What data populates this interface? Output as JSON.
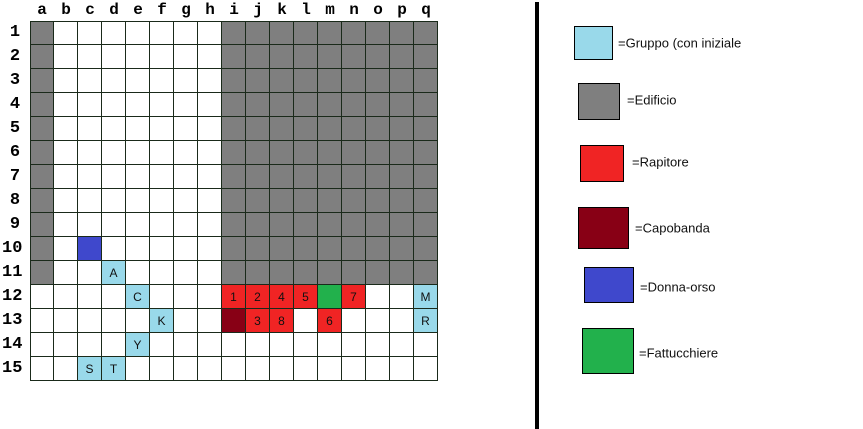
{
  "columns": [
    "a",
    "b",
    "c",
    "d",
    "e",
    "f",
    "g",
    "h",
    "i",
    "j",
    "k",
    "l",
    "m",
    "n",
    "o",
    "p",
    "q"
  ],
  "rows": [
    "1",
    "2",
    "3",
    "4",
    "5",
    "6",
    "7",
    "8",
    "9",
    "10",
    "11",
    "12",
    "13",
    "14",
    "15"
  ],
  "colors": {
    "gruppo": "#99d9ea",
    "edificio": "#7f7f7f",
    "rapitore": "#f02424",
    "capobanda": "#880015",
    "donna_orso": "#3f48cc",
    "fattucchiere": "#22b14c"
  },
  "building_areas": [
    {
      "cols": "a",
      "rows": "1-11"
    },
    {
      "cols": "i-q",
      "rows": "1-11"
    }
  ],
  "cells": [
    {
      "cell": "c10",
      "type": "donna_orso",
      "label": ""
    },
    {
      "cell": "d11",
      "type": "gruppo",
      "label": "A"
    },
    {
      "cell": "e12",
      "type": "gruppo",
      "label": "C"
    },
    {
      "cell": "i12",
      "type": "rapitore",
      "label": "1"
    },
    {
      "cell": "j12",
      "type": "rapitore",
      "label": "2"
    },
    {
      "cell": "k12",
      "type": "rapitore",
      "label": "4"
    },
    {
      "cell": "l12",
      "type": "rapitore",
      "label": "5"
    },
    {
      "cell": "m12",
      "type": "fattucchiere",
      "label": ""
    },
    {
      "cell": "n12",
      "type": "rapitore",
      "label": "7"
    },
    {
      "cell": "q12",
      "type": "gruppo",
      "label": "M"
    },
    {
      "cell": "f13",
      "type": "gruppo",
      "label": "K"
    },
    {
      "cell": "i13",
      "type": "capobanda",
      "label": ""
    },
    {
      "cell": "j13",
      "type": "rapitore",
      "label": "3"
    },
    {
      "cell": "k13",
      "type": "rapitore",
      "label": "8"
    },
    {
      "cell": "m13",
      "type": "rapitore",
      "label": "6"
    },
    {
      "cell": "q13",
      "type": "gruppo",
      "label": "R"
    },
    {
      "cell": "e14",
      "type": "gruppo",
      "label": "Y"
    },
    {
      "cell": "c15",
      "type": "gruppo",
      "label": "S"
    },
    {
      "cell": "d15",
      "type": "gruppo",
      "label": "T"
    }
  ],
  "legend": [
    {
      "type": "gruppo",
      "label": "=Gruppo (con iniziale"
    },
    {
      "type": "edificio",
      "label": "=Edificio"
    },
    {
      "type": "rapitore",
      "label": "=Rapitore"
    },
    {
      "type": "capobanda",
      "label": "=Capobanda"
    },
    {
      "type": "donna_orso",
      "label": "=Donna-orso"
    },
    {
      "type": "fattucchiere",
      "label": "=Fattucchiere"
    }
  ]
}
